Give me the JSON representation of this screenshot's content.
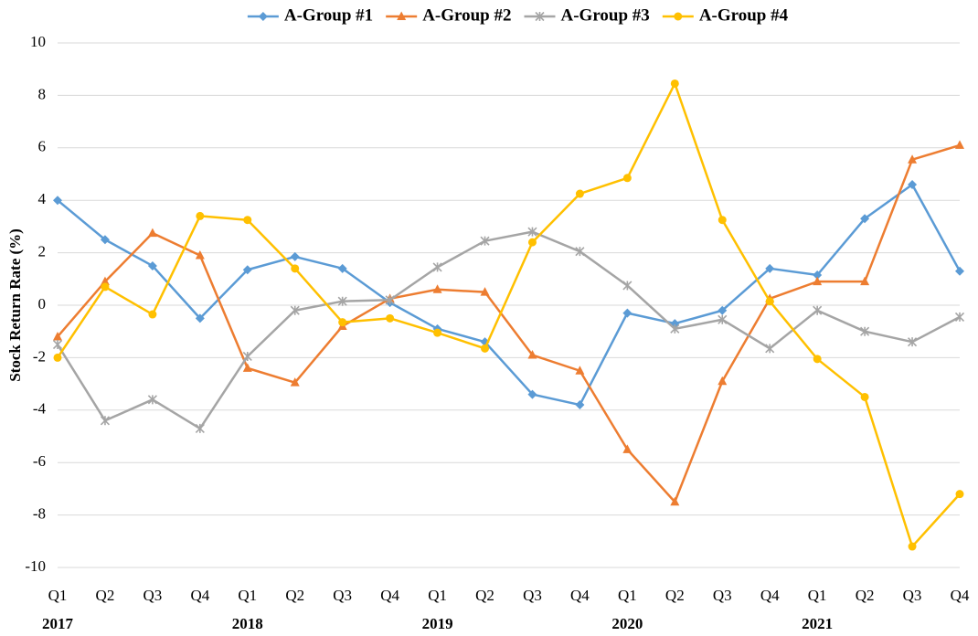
{
  "chart_data": {
    "type": "line",
    "y_label": "Stock Return Rate (%)",
    "categories": [
      "Q1",
      "Q2",
      "Q3",
      "Q4",
      "Q1",
      "Q2",
      "Q3",
      "Q4",
      "Q1",
      "Q2",
      "Q3",
      "Q4",
      "Q1",
      "Q2",
      "Q3",
      "Q4",
      "Q1",
      "Q2",
      "Q3",
      "Q4"
    ],
    "years": [
      "2017",
      "2018",
      "2019",
      "2020",
      "2021"
    ],
    "ylim": [
      -10,
      10
    ],
    "yticks": [
      -10,
      -8,
      -6,
      -4,
      -2,
      0,
      2,
      4,
      6,
      8,
      10
    ],
    "grid": true,
    "legend": "top",
    "series": [
      {
        "name": "A-Group #1",
        "color": "#5b9bd5",
        "marker": "diamond",
        "values": [
          4.0,
          2.5,
          1.5,
          -0.5,
          1.35,
          1.85,
          1.4,
          0.1,
          -0.9,
          -1.4,
          -3.4,
          -3.8,
          -0.3,
          -0.7,
          -0.2,
          1.4,
          1.15,
          3.3,
          4.6,
          1.3
        ]
      },
      {
        "name": "A-Group #2",
        "color": "#ed7d31",
        "marker": "triangle",
        "values": [
          -1.2,
          0.9,
          2.75,
          1.9,
          -2.4,
          -2.95,
          -0.8,
          0.25,
          0.6,
          0.5,
          -1.9,
          -2.5,
          -5.5,
          -7.5,
          -2.9,
          0.25,
          0.9,
          0.9,
          5.55,
          6.1
        ]
      },
      {
        "name": "A-Group #3",
        "color": "#a5a5a5",
        "marker": "asterisk",
        "values": [
          -1.5,
          -4.4,
          -3.6,
          -4.7,
          -1.95,
          -0.2,
          0.15,
          0.2,
          1.45,
          2.45,
          2.8,
          2.05,
          0.75,
          -0.9,
          -0.55,
          -1.65,
          -0.2,
          -1.0,
          -1.4,
          -0.45
        ]
      },
      {
        "name": "A-Group #4",
        "color": "#ffc000",
        "marker": "circle",
        "values": [
          -2.0,
          0.7,
          -0.35,
          3.4,
          3.25,
          1.4,
          -0.65,
          -0.5,
          -1.05,
          -1.65,
          2.4,
          4.25,
          4.85,
          8.45,
          3.25,
          0.15,
          -2.05,
          -3.5,
          -9.2,
          -7.2
        ]
      }
    ]
  }
}
